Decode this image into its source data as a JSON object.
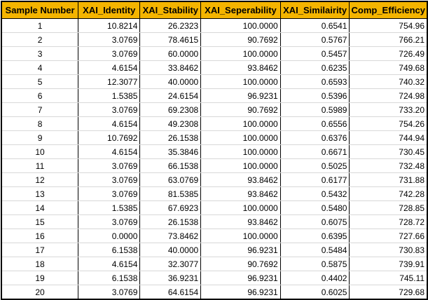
{
  "table": {
    "columns": [
      "Sample Number",
      "XAI_Identity",
      "XAI_Stability",
      "XAI_Seperability",
      "XAI_Similairity",
      "Comp_Efficiency"
    ],
    "rows": [
      [
        "1",
        "10.8214",
        "26.2323",
        "100.0000",
        "0.6541",
        "754.96"
      ],
      [
        "2",
        "3.0769",
        "78.4615",
        "90.7692",
        "0.5767",
        "766.21"
      ],
      [
        "3",
        "3.0769",
        "60.0000",
        "100.0000",
        "0.5457",
        "726.49"
      ],
      [
        "4",
        "4.6154",
        "33.8462",
        "93.8462",
        "0.6235",
        "749.68"
      ],
      [
        "5",
        "12.3077",
        "40.0000",
        "100.0000",
        "0.6593",
        "740.32"
      ],
      [
        "6",
        "1.5385",
        "24.6154",
        "96.9231",
        "0.5396",
        "724.98"
      ],
      [
        "7",
        "3.0769",
        "69.2308",
        "90.7692",
        "0.5989",
        "733.20"
      ],
      [
        "8",
        "4.6154",
        "49.2308",
        "100.0000",
        "0.6556",
        "754.26"
      ],
      [
        "9",
        "10.7692",
        "26.1538",
        "100.0000",
        "0.6376",
        "744.94"
      ],
      [
        "10",
        "4.6154",
        "35.3846",
        "100.0000",
        "0.6671",
        "730.45"
      ],
      [
        "11",
        "3.0769",
        "66.1538",
        "100.0000",
        "0.5025",
        "732.48"
      ],
      [
        "12",
        "3.0769",
        "63.0769",
        "93.8462",
        "0.6177",
        "731.88"
      ],
      [
        "13",
        "3.0769",
        "81.5385",
        "93.8462",
        "0.5432",
        "742.28"
      ],
      [
        "14",
        "1.5385",
        "67.6923",
        "100.0000",
        "0.5480",
        "728.85"
      ],
      [
        "15",
        "3.0769",
        "26.1538",
        "93.8462",
        "0.6075",
        "728.72"
      ],
      [
        "16",
        "0.0000",
        "73.8462",
        "100.0000",
        "0.6395",
        "727.66"
      ],
      [
        "17",
        "6.1538",
        "40.0000",
        "96.9231",
        "0.5484",
        "730.83"
      ],
      [
        "18",
        "4.6154",
        "32.3077",
        "90.7692",
        "0.5875",
        "739.91"
      ],
      [
        "19",
        "6.1538",
        "36.9231",
        "96.9231",
        "0.4402",
        "745.11"
      ],
      [
        "20",
        "3.0769",
        "64.6154",
        "96.9231",
        "0.6025",
        "729.68"
      ]
    ]
  },
  "colors": {
    "header_background": "#f4b400",
    "border": "#000000",
    "row_separator": "#d8d8d8"
  }
}
